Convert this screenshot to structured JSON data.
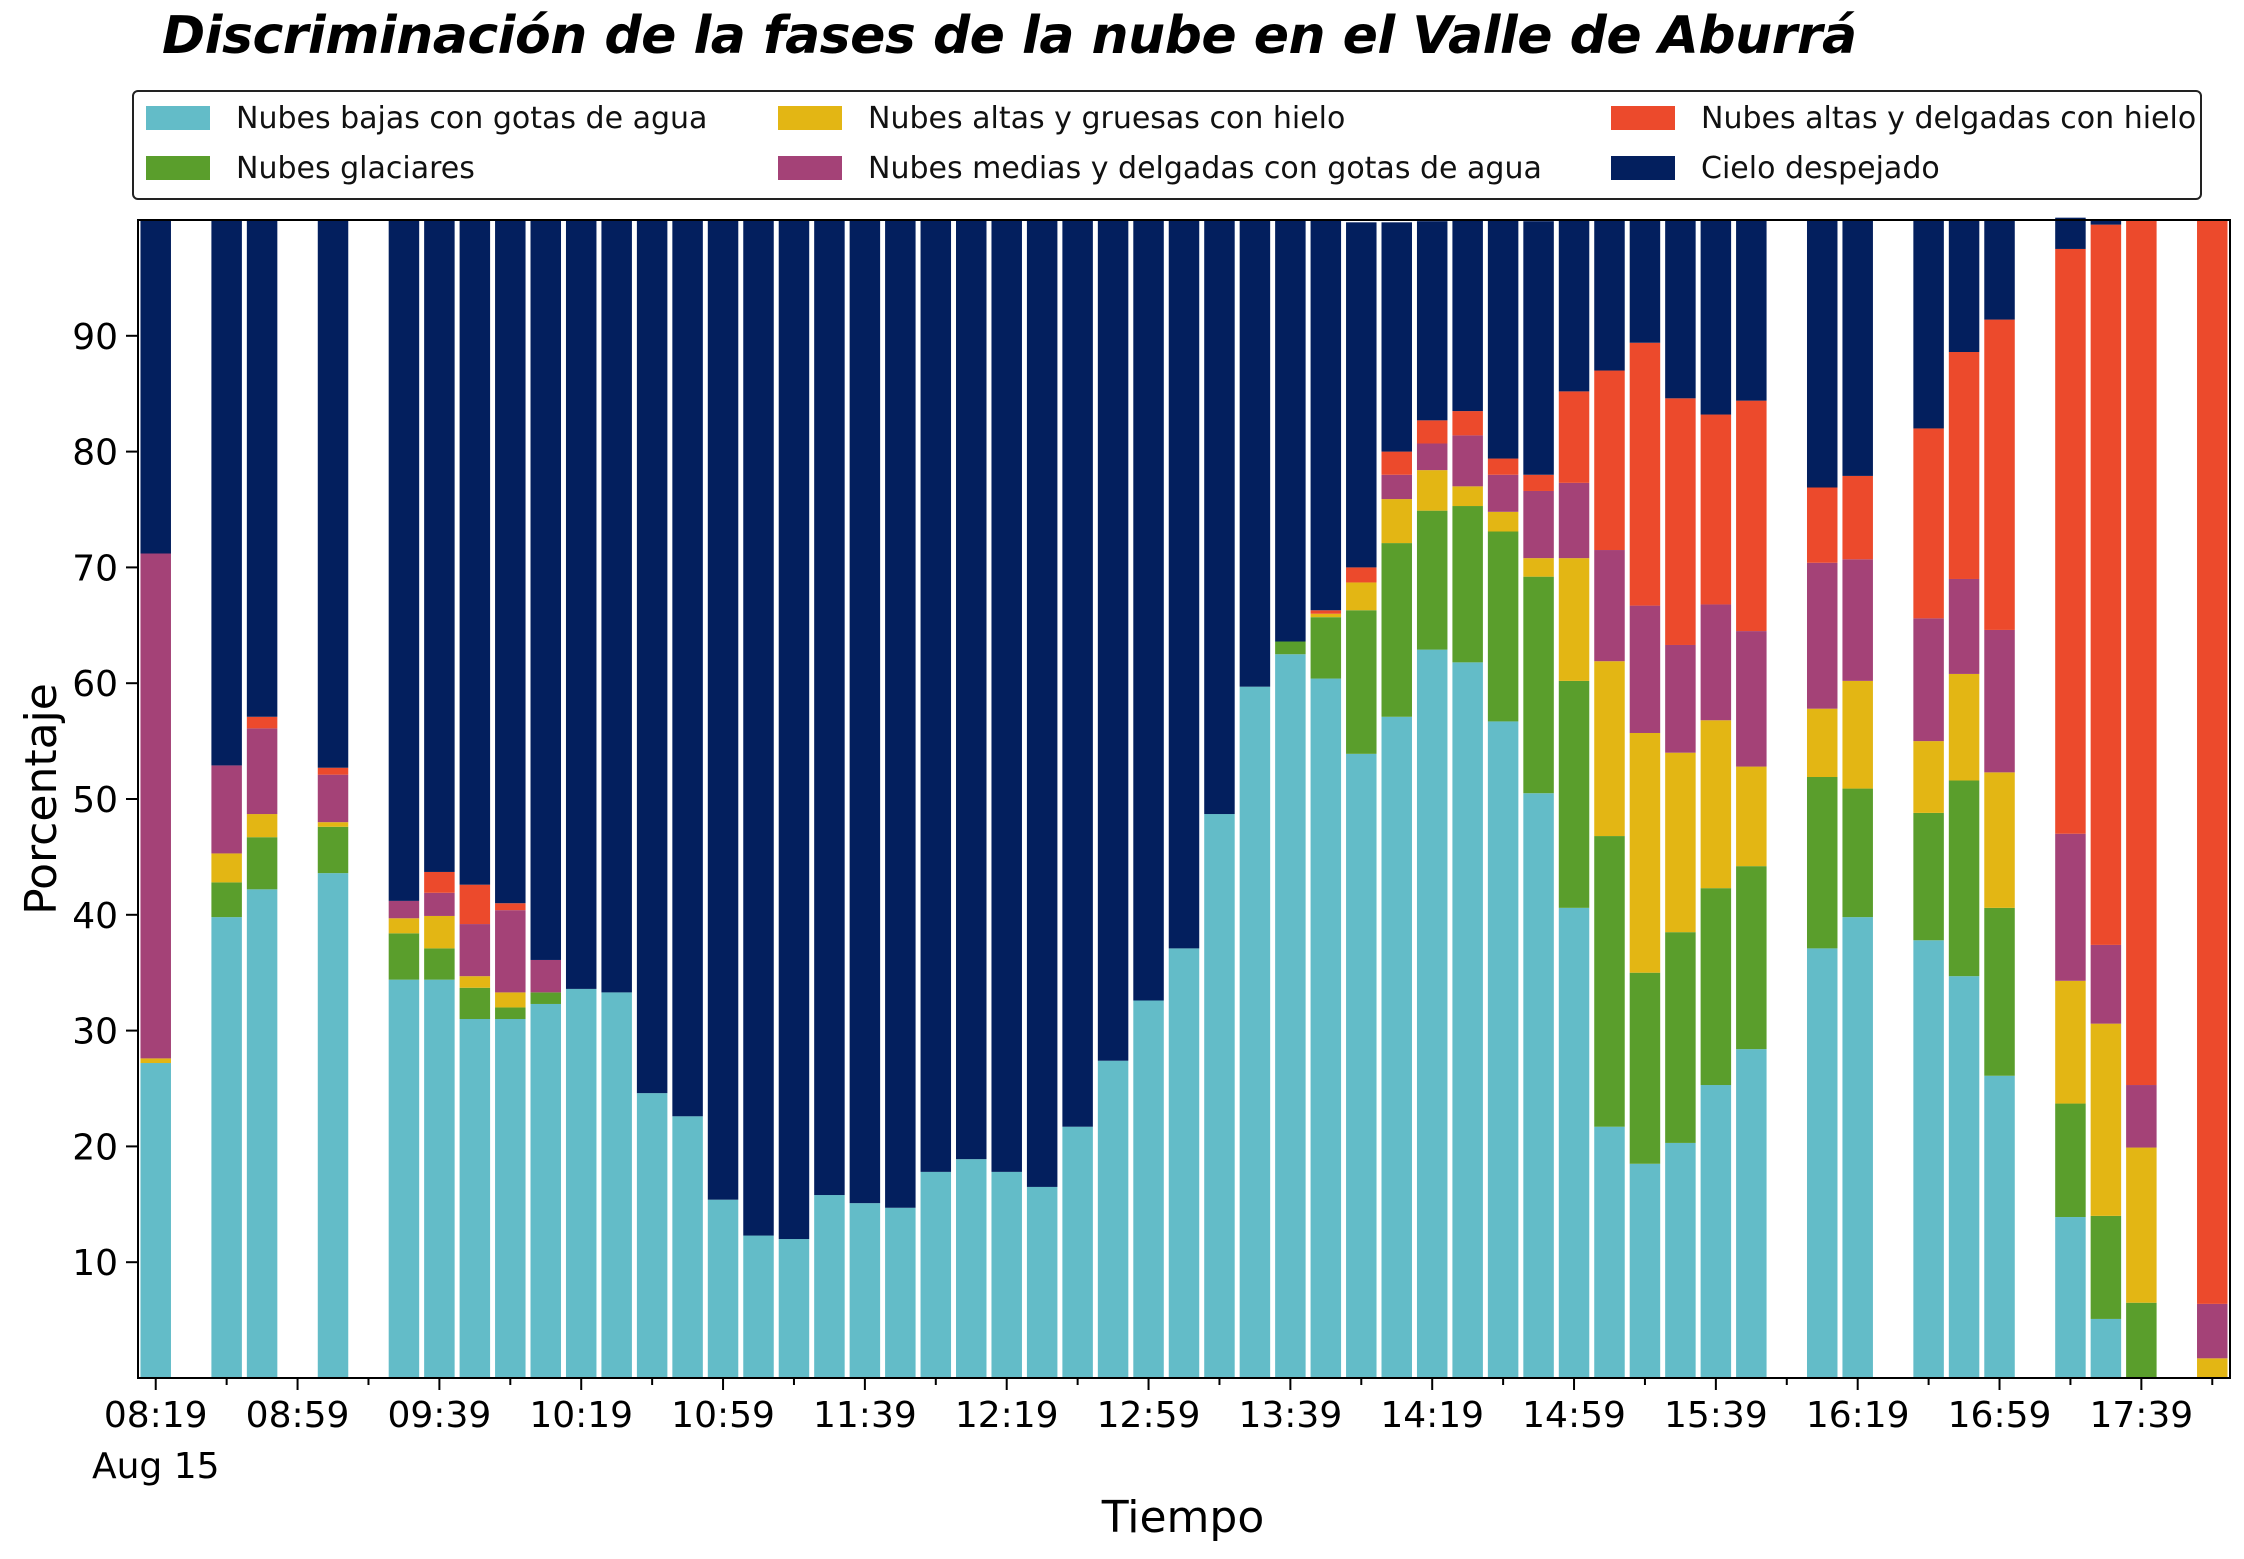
{
  "chart_data": {
    "type": "bar",
    "stacked": true,
    "title": "Discriminación de la fases de la nube en el Valle de Aburrá",
    "xlabel": "Tiempo",
    "ylabel": "Porcentaje",
    "ylim": [
      0,
      100
    ],
    "yticks": [
      10,
      20,
      30,
      40,
      50,
      60,
      70,
      80,
      90
    ],
    "x_start": "08:19",
    "x_step_minutes": 10,
    "x_count": 59,
    "xticks": [
      {
        "index": 0,
        "label": "08:19"
      },
      {
        "index": 4,
        "label": "08:59"
      },
      {
        "index": 8,
        "label": "09:39"
      },
      {
        "index": 12,
        "label": "10:19"
      },
      {
        "index": 16,
        "label": "10:59"
      },
      {
        "index": 20,
        "label": "11:39"
      },
      {
        "index": 24,
        "label": "12:19"
      },
      {
        "index": 28,
        "label": "12:59"
      },
      {
        "index": 32,
        "label": "13:39"
      },
      {
        "index": 36,
        "label": "14:19"
      },
      {
        "index": 40,
        "label": "14:59"
      },
      {
        "index": 44,
        "label": "15:39"
      },
      {
        "index": 48,
        "label": "16:19"
      },
      {
        "index": 52,
        "label": "16:59"
      },
      {
        "index": 56,
        "label": "17:39"
      }
    ],
    "date_label": "Aug 15",
    "grid": false,
    "legend_position": "top",
    "series": [
      {
        "name": "Nubes bajas con gotas de agua",
        "color": "#63bcc8",
        "values": [
          27.2,
          null,
          39.8,
          42.2,
          null,
          43.6,
          null,
          34.4,
          34.4,
          31.0,
          31.0,
          32.3,
          33.6,
          33.3,
          24.6,
          22.6,
          15.4,
          12.3,
          12.0,
          15.8,
          15.1,
          14.7,
          17.8,
          18.9,
          17.8,
          16.5,
          21.7,
          27.4,
          32.6,
          37.1,
          48.7,
          59.7,
          62.5,
          60.4,
          53.9,
          57.1,
          62.9,
          61.8,
          56.7,
          50.5,
          40.6,
          21.7,
          18.5,
          20.3,
          25.3,
          28.4,
          null,
          37.1,
          39.8,
          null,
          37.8,
          34.7,
          26.1,
          null,
          13.9,
          5.1,
          0,
          null,
          0
        ]
      },
      {
        "name": "Nubes glaciares",
        "color": "#5a9e2c",
        "values": [
          0,
          null,
          3.0,
          4.5,
          null,
          4.0,
          null,
          4.0,
          2.7,
          2.7,
          1.0,
          1.0,
          0,
          0,
          0,
          0,
          0,
          0,
          0,
          0,
          0,
          0,
          0,
          0,
          0,
          0,
          0,
          0,
          0,
          0,
          0,
          0,
          1.1,
          5.3,
          12.4,
          15.0,
          12.0,
          13.5,
          16.4,
          18.7,
          19.6,
          25.1,
          16.5,
          18.2,
          17.0,
          15.8,
          null,
          14.8,
          11.1,
          null,
          11.0,
          16.9,
          14.5,
          null,
          9.8,
          8.9,
          6.5,
          null,
          0
        ]
      },
      {
        "name": "Nubes altas y gruesas con hielo",
        "color": "#e3b614",
        "values": [
          0.4,
          null,
          2.5,
          2.0,
          null,
          0.4,
          null,
          1.3,
          2.8,
          1.0,
          1.3,
          0,
          0,
          0,
          0,
          0,
          0,
          0,
          0,
          0,
          0,
          0,
          0,
          0,
          0,
          0,
          0,
          0,
          0,
          0,
          0,
          0,
          0,
          0.3,
          2.4,
          3.8,
          3.5,
          1.7,
          1.7,
          1.6,
          10.6,
          15.1,
          20.7,
          15.5,
          14.5,
          8.6,
          null,
          5.9,
          9.3,
          null,
          6.2,
          9.2,
          11.7,
          null,
          10.6,
          16.6,
          13.4,
          null,
          1.7
        ]
      },
      {
        "name": "Nubes medias y delgadas con gotas de agua",
        "color": "#a44277",
        "values": [
          43.6,
          null,
          7.6,
          7.4,
          null,
          4.1,
          null,
          1.5,
          2.0,
          4.5,
          7.1,
          2.8,
          0,
          0,
          0,
          0,
          0,
          0,
          0,
          0,
          0,
          0,
          0,
          0,
          0,
          0,
          0,
          0,
          0,
          0,
          0,
          0,
          0,
          0,
          0,
          2.1,
          2.3,
          4.4,
          3.2,
          5.8,
          6.5,
          9.6,
          11.0,
          9.3,
          10.0,
          11.7,
          null,
          12.6,
          10.5,
          null,
          10.6,
          8.2,
          12.3,
          null,
          12.7,
          6.8,
          5.4,
          null,
          4.7
        ]
      },
      {
        "name": "Nubes altas y delgadas con hielo",
        "color": "#ec4a2c",
        "values": [
          0,
          null,
          0,
          1.0,
          null,
          0.6,
          null,
          0,
          1.8,
          3.4,
          0.6,
          0,
          0,
          0,
          0,
          0,
          0,
          0,
          0,
          0,
          0,
          0,
          0,
          0,
          0,
          0,
          0,
          0,
          0,
          0,
          0,
          0,
          0,
          0.3,
          1.3,
          2.0,
          2.0,
          2.1,
          1.4,
          1.4,
          7.9,
          15.5,
          22.7,
          21.3,
          16.4,
          19.9,
          null,
          6.5,
          7.2,
          null,
          16.4,
          19.6,
          26.8,
          null,
          50.5,
          62.2,
          74.7,
          null,
          93.6
        ]
      },
      {
        "name": "Cielo despejado",
        "color": "#031f5e",
        "values": [
          28.8,
          null,
          47.1,
          42.9,
          null,
          47.3,
          null,
          58.8,
          56.3,
          57.4,
          59.0,
          63.9,
          66.4,
          66.7,
          75.4,
          77.4,
          84.6,
          87.7,
          88.0,
          84.2,
          84.9,
          85.3,
          82.2,
          81.1,
          82.2,
          83.5,
          78.3,
          72.6,
          67.4,
          62.9,
          51.3,
          40.3,
          36.4,
          33.7,
          29.8,
          19.8,
          17.2,
          16.5,
          20.6,
          21.9,
          14.8,
          13.0,
          10.6,
          15.4,
          16.8,
          15.6,
          null,
          23.1,
          22.1,
          null,
          18.0,
          11.4,
          8.6,
          null,
          2.7,
          0.4,
          0,
          null,
          0
        ]
      }
    ]
  }
}
